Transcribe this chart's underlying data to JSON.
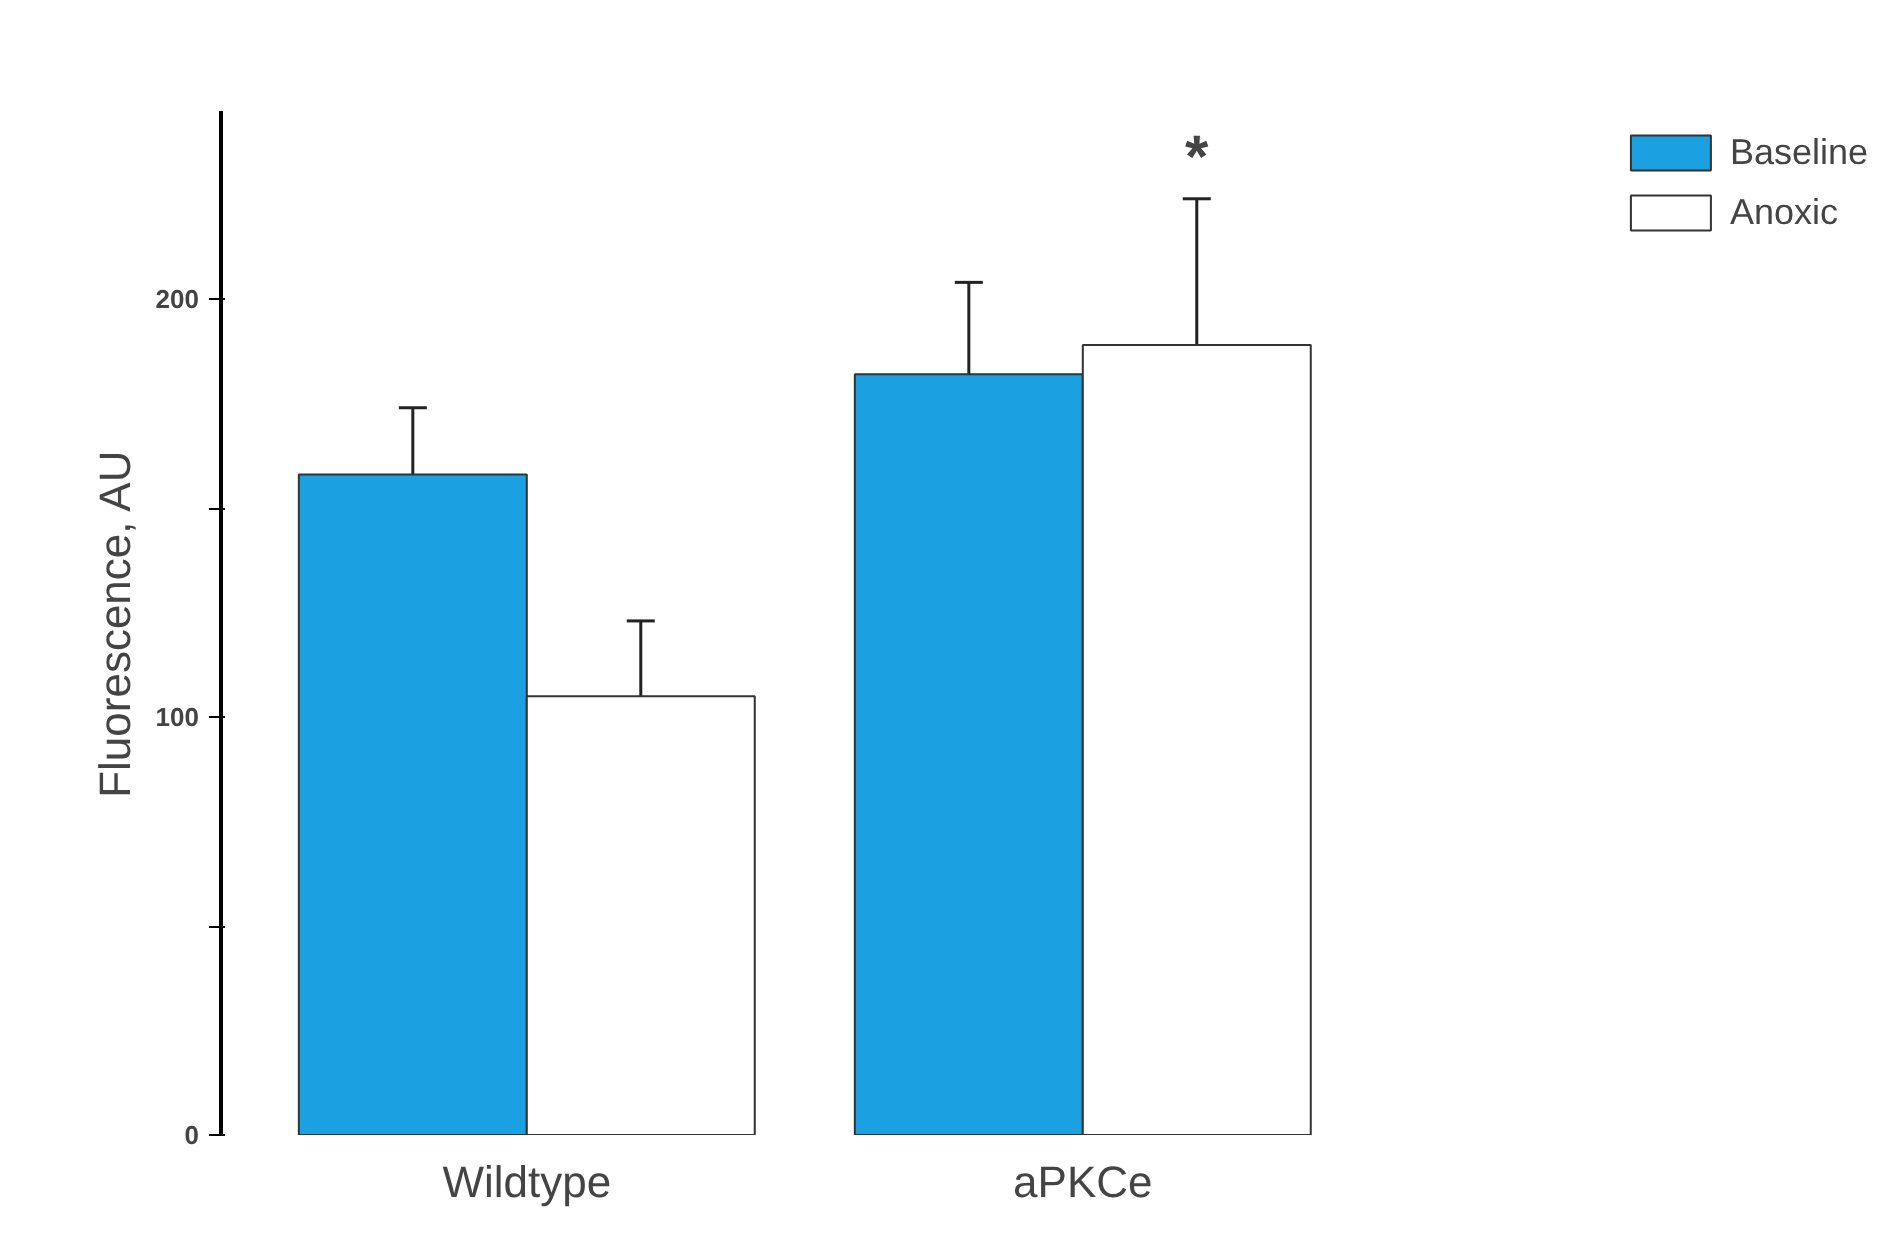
{
  "chart_data": {
    "type": "bar",
    "ylabel": "Fluorescence, AU",
    "categories": [
      "Wildtype",
      "aPKCe"
    ],
    "series": [
      {
        "name": "Baseline",
        "color": "#1ba1e2",
        "values": [
          158,
          182
        ],
        "errors": [
          [
            158,
            174
          ],
          [
            182,
            204
          ]
        ]
      },
      {
        "name": "Anoxic",
        "color": "#ffffff",
        "values": [
          105,
          189
        ],
        "errors": [
          [
            105,
            123
          ],
          [
            189,
            224
          ]
        ]
      }
    ],
    "ylim": [
      0,
      245
    ],
    "yticks": [
      0,
      {
        "value": 50,
        "label": null
      },
      100,
      {
        "value": 150,
        "label": null
      },
      200
    ],
    "annotations": [
      "*"
    ],
    "grid": false,
    "legend": "top right"
  }
}
